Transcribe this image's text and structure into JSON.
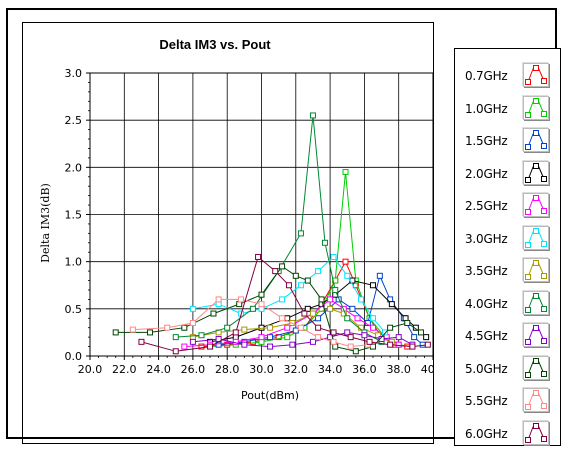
{
  "chart_data": {
    "type": "line",
    "title": "Delta IM3 vs. Pout",
    "xlabel": "Pout(dBm)",
    "ylabel": "Delta IM3(dB)",
    "xlim": [
      20.0,
      40.0
    ],
    "ylim": [
      0.0,
      3.0
    ],
    "xticks": [
      "20.0",
      "22.0",
      "24.0",
      "26.0",
      "28.0",
      "30.0",
      "32.0",
      "34.0",
      "36.0",
      "38.0",
      "40.0"
    ],
    "yticks": [
      "0.0",
      "0.5",
      "1.0",
      "1.5",
      "2.0",
      "2.5",
      "3.0"
    ],
    "grid": true,
    "legend_position": "right",
    "series": [
      {
        "name": "0.7GHz",
        "color": "#ff0000",
        "points": [
          [
            26.5,
            0.1
          ],
          [
            28.0,
            0.12
          ],
          [
            29.5,
            0.15
          ],
          [
            31.0,
            0.2
          ],
          [
            32.5,
            0.3
          ],
          [
            33.5,
            0.55
          ],
          [
            34.3,
            0.8
          ],
          [
            34.9,
            1.0
          ],
          [
            35.5,
            0.75
          ],
          [
            36.3,
            0.4
          ],
          [
            37.0,
            0.2
          ],
          [
            37.8,
            0.12
          ],
          [
            38.5,
            0.1
          ]
        ]
      },
      {
        "name": "1.0GHz",
        "color": "#00cc00",
        "points": [
          [
            27.0,
            0.1
          ],
          [
            28.5,
            0.12
          ],
          [
            30.0,
            0.15
          ],
          [
            31.5,
            0.2
          ],
          [
            32.5,
            0.3
          ],
          [
            33.5,
            0.5
          ],
          [
            34.3,
            0.8
          ],
          [
            34.9,
            1.95
          ],
          [
            35.5,
            0.8
          ],
          [
            36.3,
            0.4
          ],
          [
            37.2,
            0.2
          ],
          [
            38.0,
            0.12
          ],
          [
            38.8,
            0.1
          ]
        ]
      },
      {
        "name": "1.5GHz",
        "color": "#0044cc",
        "points": [
          [
            27.5,
            0.12
          ],
          [
            29.0,
            0.15
          ],
          [
            30.5,
            0.2
          ],
          [
            32.0,
            0.27
          ],
          [
            33.3,
            0.4
          ],
          [
            34.5,
            0.6
          ],
          [
            35.3,
            0.5
          ],
          [
            36.2,
            0.35
          ],
          [
            36.9,
            0.85
          ],
          [
            37.5,
            0.6
          ],
          [
            38.3,
            0.4
          ],
          [
            38.9,
            0.2
          ],
          [
            39.4,
            0.12
          ]
        ]
      },
      {
        "name": "2.0GHz",
        "color": "#000000",
        "points": [
          [
            27.0,
            0.15
          ],
          [
            28.5,
            0.2
          ],
          [
            30.0,
            0.3
          ],
          [
            31.5,
            0.4
          ],
          [
            32.7,
            0.5
          ],
          [
            33.5,
            0.55
          ],
          [
            34.3,
            0.65
          ],
          [
            35.3,
            0.8
          ],
          [
            36.5,
            0.75
          ],
          [
            37.6,
            0.55
          ],
          [
            38.4,
            0.4
          ],
          [
            39.0,
            0.3
          ],
          [
            39.6,
            0.2
          ]
        ]
      },
      {
        "name": "2.5GHz",
        "color": "#ff00ff",
        "points": [
          [
            25.5,
            0.1
          ],
          [
            27.0,
            0.12
          ],
          [
            28.5,
            0.15
          ],
          [
            30.0,
            0.2
          ],
          [
            31.5,
            0.3
          ],
          [
            33.0,
            0.45
          ],
          [
            34.0,
            0.6
          ],
          [
            34.8,
            0.5
          ],
          [
            35.6,
            0.4
          ],
          [
            36.5,
            0.3
          ],
          [
            37.3,
            0.2
          ],
          [
            38.0,
            0.12
          ]
        ]
      },
      {
        "name": "3.0GHz",
        "color": "#00e5ff",
        "points": [
          [
            26.0,
            0.5
          ],
          [
            27.5,
            0.55
          ],
          [
            28.8,
            0.45
          ],
          [
            30.0,
            0.5
          ],
          [
            31.2,
            0.6
          ],
          [
            32.3,
            0.75
          ],
          [
            33.3,
            0.9
          ],
          [
            34.2,
            1.05
          ],
          [
            35.0,
            0.85
          ],
          [
            35.8,
            0.6
          ],
          [
            36.5,
            0.4
          ],
          [
            37.2,
            0.25
          ]
        ]
      },
      {
        "name": "3.5GHz",
        "color": "#aa9900",
        "points": [
          [
            26.0,
            0.2
          ],
          [
            27.5,
            0.25
          ],
          [
            29.0,
            0.28
          ],
          [
            30.5,
            0.3
          ],
          [
            31.8,
            0.35
          ],
          [
            33.0,
            0.45
          ],
          [
            34.0,
            0.5
          ],
          [
            34.8,
            0.45
          ],
          [
            35.8,
            0.3
          ],
          [
            36.8,
            0.22
          ],
          [
            37.6,
            0.15
          ]
        ]
      },
      {
        "name": "4.0GHz",
        "color": "#008833",
        "points": [
          [
            25.0,
            0.2
          ],
          [
            26.5,
            0.22
          ],
          [
            28.0,
            0.3
          ],
          [
            29.5,
            0.5
          ],
          [
            31.0,
            0.9
          ],
          [
            32.3,
            1.3
          ],
          [
            33.0,
            2.55
          ],
          [
            33.7,
            1.2
          ],
          [
            34.3,
            0.7
          ],
          [
            35.0,
            0.4
          ],
          [
            36.0,
            0.25
          ],
          [
            37.0,
            0.15
          ]
        ]
      },
      {
        "name": "4.5GHz",
        "color": "#8800cc",
        "points": [
          [
            26.0,
            0.15
          ],
          [
            27.5,
            0.18
          ],
          [
            29.0,
            0.12
          ],
          [
            30.5,
            0.1
          ],
          [
            31.8,
            0.12
          ],
          [
            33.0,
            0.15
          ],
          [
            34.0,
            0.2
          ],
          [
            35.0,
            0.25
          ],
          [
            36.0,
            0.22
          ],
          [
            37.0,
            0.18
          ],
          [
            38.0,
            0.2
          ],
          [
            38.8,
            0.12
          ]
        ]
      },
      {
        "name": "5.0GHz",
        "color": "#004400",
        "points": [
          [
            21.5,
            0.25
          ],
          [
            23.5,
            0.25
          ],
          [
            25.5,
            0.3
          ],
          [
            27.2,
            0.45
          ],
          [
            28.7,
            0.55
          ],
          [
            30.0,
            0.65
          ],
          [
            31.2,
            0.95
          ],
          [
            32.0,
            0.85
          ],
          [
            32.7,
            0.8
          ],
          [
            33.5,
            0.6
          ],
          [
            34.3,
            0.1
          ],
          [
            35.5,
            0.05
          ],
          [
            36.5,
            0.1
          ],
          [
            37.5,
            0.3
          ],
          [
            38.5,
            0.35
          ],
          [
            39.3,
            0.25
          ]
        ]
      },
      {
        "name": "5.5GHz",
        "color": "#ff8888",
        "points": [
          [
            22.5,
            0.28
          ],
          [
            24.5,
            0.3
          ],
          [
            26.0,
            0.35
          ],
          [
            27.5,
            0.6
          ],
          [
            28.8,
            0.6
          ],
          [
            30.0,
            0.55
          ],
          [
            31.2,
            0.4
          ],
          [
            32.3,
            0.3
          ],
          [
            33.3,
            0.2
          ],
          [
            34.2,
            0.15
          ],
          [
            35.2,
            0.1
          ],
          [
            36.2,
            0.12
          ]
        ]
      },
      {
        "name": "6.0GHz",
        "color": "#800040",
        "points": [
          [
            23.0,
            0.15
          ],
          [
            25.0,
            0.05
          ],
          [
            27.0,
            0.1
          ],
          [
            28.5,
            0.25
          ],
          [
            29.8,
            1.05
          ],
          [
            30.8,
            0.9
          ],
          [
            31.6,
            0.75
          ],
          [
            32.5,
            0.45
          ],
          [
            33.3,
            0.3
          ],
          [
            34.2,
            0.25
          ],
          [
            35.2,
            0.2
          ],
          [
            36.3,
            0.15
          ],
          [
            37.5,
            0.12
          ],
          [
            38.8,
            0.1
          ],
          [
            39.7,
            0.12
          ]
        ]
      }
    ]
  }
}
